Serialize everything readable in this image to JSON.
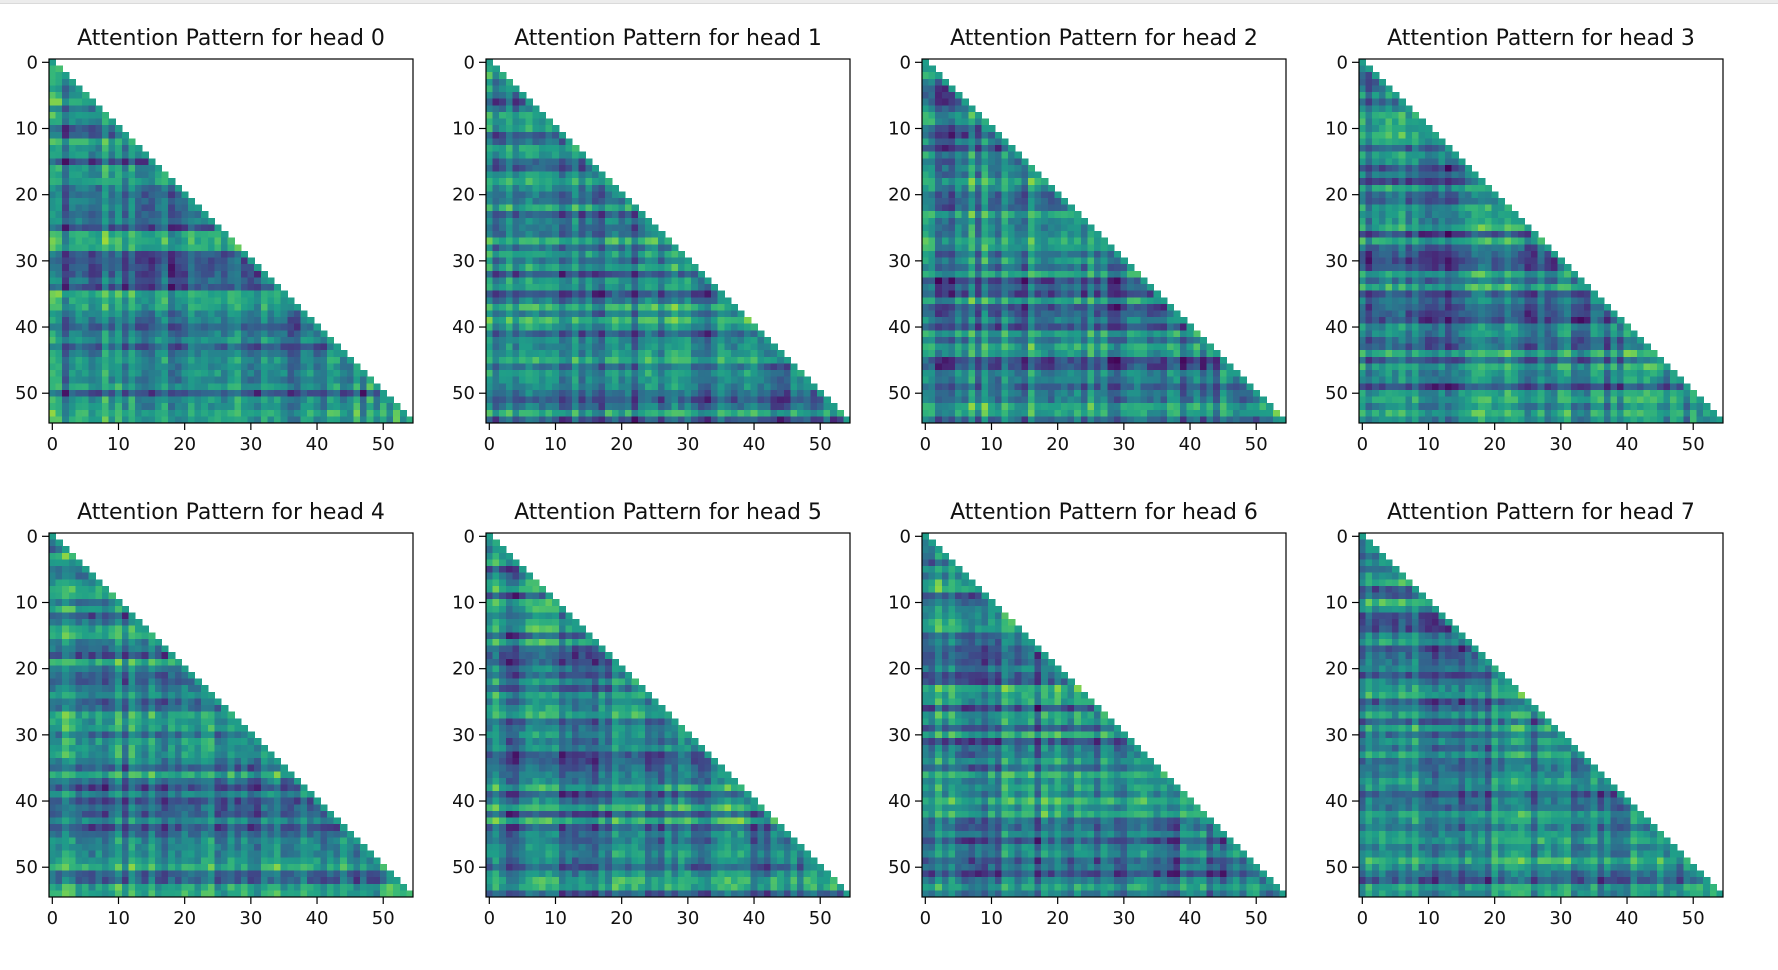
{
  "chart_data": [
    {
      "type": "heatmap",
      "title": "Attention Pattern for head 0",
      "matrix_size": 55,
      "mask": "lower-triangular",
      "colormap": "viridis",
      "xticks": [
        0,
        10,
        20,
        30,
        40,
        50
      ],
      "yticks": [
        0,
        10,
        20,
        30,
        40,
        50
      ],
      "xlim": [
        -0.5,
        54.5
      ],
      "ylim": [
        54.5,
        -0.5
      ],
      "xtick_labels": [
        "0",
        "10",
        "20",
        "30",
        "40",
        "50"
      ],
      "ytick_labels": [
        "0",
        "10",
        "20",
        "30",
        "40",
        "50"
      ],
      "xlabel": "",
      "ylabel": "",
      "grid": false
    },
    {
      "type": "heatmap",
      "title": "Attention Pattern for head 1",
      "matrix_size": 55,
      "mask": "lower-triangular",
      "colormap": "viridis",
      "xticks": [
        0,
        10,
        20,
        30,
        40,
        50
      ],
      "yticks": [
        0,
        10,
        20,
        30,
        40,
        50
      ],
      "xlim": [
        -0.5,
        54.5
      ],
      "ylim": [
        54.5,
        -0.5
      ],
      "xtick_labels": [
        "0",
        "10",
        "20",
        "30",
        "40",
        "50"
      ],
      "ytick_labels": [
        "0",
        "10",
        "20",
        "30",
        "40",
        "50"
      ],
      "xlabel": "",
      "ylabel": "",
      "grid": false
    },
    {
      "type": "heatmap",
      "title": "Attention Pattern for head 2",
      "matrix_size": 55,
      "mask": "lower-triangular",
      "colormap": "viridis",
      "xticks": [
        0,
        10,
        20,
        30,
        40,
        50
      ],
      "yticks": [
        0,
        10,
        20,
        30,
        40,
        50
      ],
      "xlim": [
        -0.5,
        54.5
      ],
      "ylim": [
        54.5,
        -0.5
      ],
      "xtick_labels": [
        "0",
        "10",
        "20",
        "30",
        "40",
        "50"
      ],
      "ytick_labels": [
        "0",
        "10",
        "20",
        "30",
        "40",
        "50"
      ],
      "xlabel": "",
      "ylabel": "",
      "grid": false
    },
    {
      "type": "heatmap",
      "title": "Attention Pattern for head 3",
      "matrix_size": 55,
      "mask": "lower-triangular",
      "colormap": "viridis",
      "xticks": [
        0,
        10,
        20,
        30,
        40,
        50
      ],
      "yticks": [
        0,
        10,
        20,
        30,
        40,
        50
      ],
      "xlim": [
        -0.5,
        54.5
      ],
      "ylim": [
        54.5,
        -0.5
      ],
      "xtick_labels": [
        "0",
        "10",
        "20",
        "30",
        "40",
        "50"
      ],
      "ytick_labels": [
        "0",
        "10",
        "20",
        "30",
        "40",
        "50"
      ],
      "xlabel": "",
      "ylabel": "",
      "grid": false
    },
    {
      "type": "heatmap",
      "title": "Attention Pattern for head 4",
      "matrix_size": 55,
      "mask": "lower-triangular",
      "colormap": "viridis",
      "xticks": [
        0,
        10,
        20,
        30,
        40,
        50
      ],
      "yticks": [
        0,
        10,
        20,
        30,
        40,
        50
      ],
      "xlim": [
        -0.5,
        54.5
      ],
      "ylim": [
        54.5,
        -0.5
      ],
      "xtick_labels": [
        "0",
        "10",
        "20",
        "30",
        "40",
        "50"
      ],
      "ytick_labels": [
        "0",
        "10",
        "20",
        "30",
        "40",
        "50"
      ],
      "xlabel": "",
      "ylabel": "",
      "grid": false
    },
    {
      "type": "heatmap",
      "title": "Attention Pattern for head 5",
      "matrix_size": 55,
      "mask": "lower-triangular",
      "colormap": "viridis",
      "xticks": [
        0,
        10,
        20,
        30,
        40,
        50
      ],
      "yticks": [
        0,
        10,
        20,
        30,
        40,
        50
      ],
      "xlim": [
        -0.5,
        54.5
      ],
      "ylim": [
        54.5,
        -0.5
      ],
      "xtick_labels": [
        "0",
        "10",
        "20",
        "30",
        "40",
        "50"
      ],
      "ytick_labels": [
        "0",
        "10",
        "20",
        "30",
        "40",
        "50"
      ],
      "xlabel": "",
      "ylabel": "",
      "grid": false
    },
    {
      "type": "heatmap",
      "title": "Attention Pattern for head 6",
      "matrix_size": 55,
      "mask": "lower-triangular",
      "colormap": "viridis",
      "xticks": [
        0,
        10,
        20,
        30,
        40,
        50
      ],
      "yticks": [
        0,
        10,
        20,
        30,
        40,
        50
      ],
      "xlim": [
        -0.5,
        54.5
      ],
      "ylim": [
        54.5,
        -0.5
      ],
      "xtick_labels": [
        "0",
        "10",
        "20",
        "30",
        "40",
        "50"
      ],
      "ytick_labels": [
        "0",
        "10",
        "20",
        "30",
        "40",
        "50"
      ],
      "xlabel": "",
      "ylabel": "",
      "grid": false
    },
    {
      "type": "heatmap",
      "title": "Attention Pattern for head 7",
      "matrix_size": 55,
      "mask": "lower-triangular",
      "colormap": "viridis",
      "xticks": [
        0,
        10,
        20,
        30,
        40,
        50
      ],
      "yticks": [
        0,
        10,
        20,
        30,
        40,
        50
      ],
      "xlim": [
        -0.5,
        54.5
      ],
      "ylim": [
        54.5,
        -0.5
      ],
      "xtick_labels": [
        "0",
        "10",
        "20",
        "30",
        "40",
        "50"
      ],
      "ytick_labels": [
        "0",
        "10",
        "20",
        "30",
        "40",
        "50"
      ],
      "xlabel": "",
      "ylabel": "",
      "grid": false
    }
  ],
  "colors": {
    "viridis_low": "#440154",
    "viridis_mid": "#21918c",
    "viridis_high": "#fde725",
    "axes_edge": "#000000",
    "background": "#ffffff"
  }
}
